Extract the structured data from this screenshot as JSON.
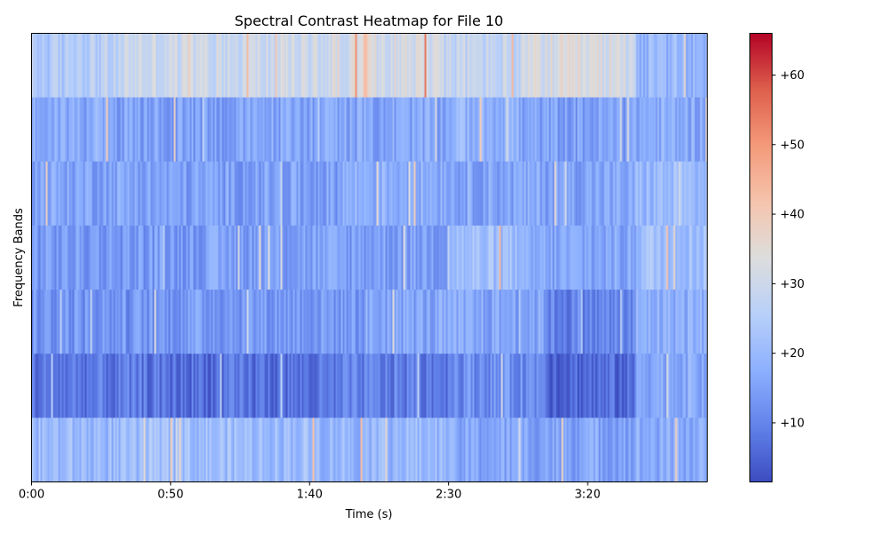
{
  "chart_data": {
    "type": "heatmap",
    "title": "Spectral Contrast Heatmap for File 10",
    "xlabel": "Time (s)",
    "ylabel": "Frequency Bands",
    "x_range_seconds": [
      0,
      243
    ],
    "x_ticks": [
      {
        "value": 0,
        "label": "0:00"
      },
      {
        "value": 50,
        "label": "0:50"
      },
      {
        "value": 100,
        "label": "1:40"
      },
      {
        "value": 150,
        "label": "2:30"
      },
      {
        "value": 200,
        "label": "3:20"
      }
    ],
    "colormap": "coolwarm",
    "colorbar": {
      "range": [
        1.5,
        66
      ],
      "ticks": [
        {
          "value": 10,
          "label": "+10"
        },
        {
          "value": 20,
          "label": "+20"
        },
        {
          "value": 30,
          "label": "+30"
        },
        {
          "value": 40,
          "label": "+40"
        },
        {
          "value": 50,
          "label": "+50"
        },
        {
          "value": 60,
          "label": "+60"
        }
      ]
    },
    "bands_top_to_bottom": [
      {
        "band": 7,
        "segments": [
          {
            "t0": 0,
            "t1": 13,
            "value": 24
          },
          {
            "t0": 13,
            "t1": 32,
            "value": 26
          },
          {
            "t0": 32,
            "t1": 108,
            "value": 30
          },
          {
            "t0": 108,
            "t1": 148,
            "value": 32
          },
          {
            "t0": 148,
            "t1": 178,
            "value": 28
          },
          {
            "t0": 178,
            "t1": 217,
            "value": 32
          },
          {
            "t0": 217,
            "t1": 243,
            "value": 19
          }
        ]
      },
      {
        "band": 6,
        "segments": [
          {
            "t0": 0,
            "t1": 30,
            "value": 17
          },
          {
            "t0": 30,
            "t1": 80,
            "value": 15
          },
          {
            "t0": 80,
            "t1": 150,
            "value": 16
          },
          {
            "t0": 150,
            "t1": 175,
            "value": 19
          },
          {
            "t0": 175,
            "t1": 217,
            "value": 15
          },
          {
            "t0": 217,
            "t1": 243,
            "value": 17
          }
        ]
      },
      {
        "band": 5,
        "segments": [
          {
            "t0": 0,
            "t1": 40,
            "value": 16
          },
          {
            "t0": 40,
            "t1": 110,
            "value": 15
          },
          {
            "t0": 110,
            "t1": 150,
            "value": 18
          },
          {
            "t0": 150,
            "t1": 217,
            "value": 16
          },
          {
            "t0": 217,
            "t1": 243,
            "value": 20
          }
        ]
      },
      {
        "band": 4,
        "segments": [
          {
            "t0": 0,
            "t1": 60,
            "value": 14
          },
          {
            "t0": 60,
            "t1": 150,
            "value": 15
          },
          {
            "t0": 150,
            "t1": 175,
            "value": 21
          },
          {
            "t0": 175,
            "t1": 217,
            "value": 16
          },
          {
            "t0": 217,
            "t1": 243,
            "value": 22
          }
        ]
      },
      {
        "band": 3,
        "segments": [
          {
            "t0": 0,
            "t1": 50,
            "value": 13
          },
          {
            "t0": 50,
            "t1": 120,
            "value": 14
          },
          {
            "t0": 120,
            "t1": 185,
            "value": 16
          },
          {
            "t0": 185,
            "t1": 217,
            "value": 10
          },
          {
            "t0": 217,
            "t1": 243,
            "value": 18
          }
        ]
      },
      {
        "band": 2,
        "segments": [
          {
            "t0": 0,
            "t1": 45,
            "value": 8
          },
          {
            "t0": 45,
            "t1": 110,
            "value": 7
          },
          {
            "t0": 110,
            "t1": 150,
            "value": 9
          },
          {
            "t0": 150,
            "t1": 185,
            "value": 12
          },
          {
            "t0": 185,
            "t1": 217,
            "value": 6
          },
          {
            "t0": 217,
            "t1": 243,
            "value": 17
          }
        ]
      },
      {
        "band": 1,
        "segments": [
          {
            "t0": 0,
            "t1": 40,
            "value": 20
          },
          {
            "t0": 40,
            "t1": 100,
            "value": 21
          },
          {
            "t0": 100,
            "t1": 150,
            "value": 20
          },
          {
            "t0": 150,
            "t1": 217,
            "value": 16
          },
          {
            "t0": 217,
            "t1": 243,
            "value": 17
          }
        ]
      }
    ]
  }
}
